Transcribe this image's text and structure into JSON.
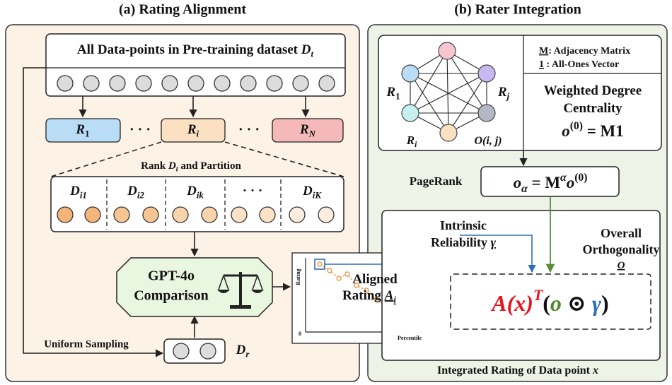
{
  "panel_a": {
    "title": "(a) Rating Alignment",
    "dataset": [
      {
        "text": "All Data-points in Pre-training dataset "
      },
      {
        "text": "D",
        "math": true
      },
      {
        "text": "t",
        "math": true,
        "pos": "sub"
      }
    ],
    "raters": [
      [
        {
          "text": "R",
          "math": true
        },
        {
          "text": "1",
          "pos": "sub"
        }
      ],
      [
        {
          "text": "R",
          "math": true
        },
        {
          "text": "i",
          "math": true,
          "pos": "sub"
        }
      ],
      [
        {
          "text": "R",
          "math": true
        },
        {
          "text": "N",
          "math": true,
          "pos": "sub"
        }
      ]
    ],
    "ellipses": [
      "· · ·",
      "· · ·"
    ],
    "rank_caption": [
      {
        "text": "Rank "
      },
      {
        "text": "D",
        "math": true
      },
      {
        "text": "t",
        "math": true,
        "pos": "sub"
      },
      {
        "text": "  and Partition"
      }
    ],
    "partitions": [
      [
        {
          "text": "D",
          "math": true
        },
        {
          "text": "i1",
          "math": true,
          "pos": "sub"
        }
      ],
      [
        {
          "text": "D",
          "math": true
        },
        {
          "text": "i2",
          "math": true,
          "pos": "sub"
        }
      ],
      [
        {
          "text": "D",
          "math": true
        },
        {
          "text": "ik",
          "math": true,
          "pos": "sub"
        }
      ],
      [
        {
          "text": "· · ·"
        }
      ],
      [
        {
          "text": "D",
          "math": true
        },
        {
          "text": "iK",
          "math": true,
          "pos": "sub"
        }
      ]
    ],
    "comparison": [
      "GPT-4o",
      "Comparison"
    ],
    "sampling": "Uniform Sampling",
    "reference": [
      {
        "text": "D",
        "math": true
      },
      {
        "text": "r",
        "math": true,
        "pos": "sub"
      }
    ],
    "plot": {
      "y_label": "Rating",
      "x_label": "Percentile",
      "origin": "0"
    },
    "aligned": [
      [
        {
          "text": "Aligned"
        }
      ],
      [
        {
          "text": "Rating "
        },
        {
          "text": "A",
          "math": true,
          "underline": true
        },
        {
          "text": "i",
          "math": true,
          "pos": "sub",
          "underline": true
        }
      ]
    ]
  },
  "panel_b": {
    "title": "(b) Rater Integration",
    "legend": [
      [
        {
          "text": "M",
          "underline": true
        },
        {
          "text": ":  Adjacency Matrix"
        }
      ],
      [
        {
          "text": "1",
          "underline": true
        },
        {
          "text": " :      All-Ones Vector"
        }
      ]
    ],
    "centrality": [
      [
        {
          "text": "Weighted Degree"
        }
      ],
      [
        {
          "text": "Centrality"
        }
      ],
      [
        {
          "text": "o",
          "math": true
        },
        {
          "text": "(0)",
          "pos": "sup"
        },
        {
          "text": " = M1"
        }
      ]
    ],
    "node_labels": [
      [
        {
          "text": "R",
          "math": true
        },
        {
          "text": "1",
          "pos": "sub"
        }
      ],
      [
        {
          "text": "R",
          "math": true
        },
        {
          "text": "j",
          "math": true,
          "pos": "sub"
        }
      ],
      [
        {
          "text": "R",
          "math": true
        },
        {
          "text": "i",
          "math": true,
          "pos": "sub"
        }
      ],
      [
        {
          "text": "O(i, j)",
          "math": true
        }
      ]
    ],
    "pagerank": "PageRank",
    "pagerank_formula": [
      {
        "text": "o",
        "math": true
      },
      {
        "text": "α",
        "math": true,
        "pos": "sub"
      },
      {
        "text": " = M"
      },
      {
        "text": "α",
        "math": true,
        "pos": "sup"
      },
      {
        "text": "o",
        "math": true
      },
      {
        "text": "(0)",
        "pos": "sup"
      }
    ],
    "reliability": [
      [
        {
          "text": "Intrinsic"
        }
      ],
      [
        {
          "text": "Reliability "
        },
        {
          "text": "γ",
          "math": true,
          "underline": true
        }
      ]
    ],
    "orthogonality": [
      [
        {
          "text": "Overall"
        }
      ],
      [
        {
          "text": "Orthogonality"
        }
      ],
      [
        {
          "text": "O",
          "math": true,
          "underline": true
        }
      ]
    ],
    "formula": [
      {
        "text": "A",
        "math": true,
        "color": "#e8141e"
      },
      {
        "text": "(x)",
        "math": true,
        "color": "#e8141e"
      },
      {
        "text": "T",
        "math": true,
        "pos": "sup",
        "color": "#e8141e"
      },
      {
        "text": "("
      },
      {
        "text": "o",
        "math": true,
        "color": "#4c8a2c"
      },
      {
        "text": " ⊙ "
      },
      {
        "text": "γ",
        "math": true,
        "color": "#2f6fb8"
      },
      {
        "text": ")"
      }
    ],
    "caption": [
      {
        "text": "Integrated Rating of Data point "
      },
      {
        "text": "x",
        "math": true
      }
    ]
  }
}
